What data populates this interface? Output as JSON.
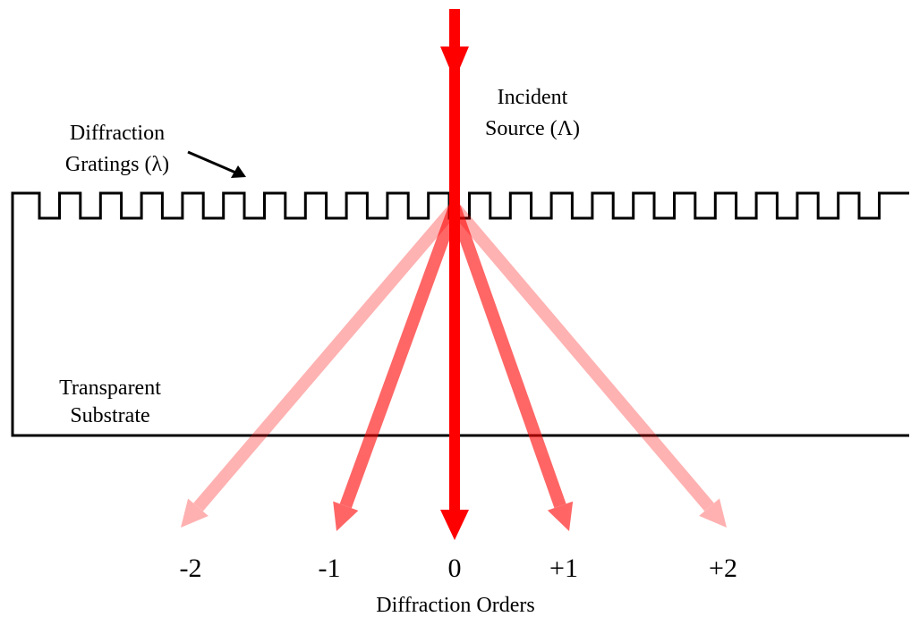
{
  "labels": {
    "incident_line1": "Incident",
    "incident_line2": "Source (Λ)",
    "grating_line1": "Diffraction",
    "grating_line2": "Gratings (λ)",
    "substrate_line1": "Transparent",
    "substrate_line2": "Substrate",
    "orders_caption": "Diffraction Orders"
  },
  "orders": [
    {
      "label": "-2",
      "opacity": 0.3
    },
    {
      "label": "-1",
      "opacity": 0.6
    },
    {
      "label": "0",
      "opacity": 1.0
    },
    {
      "label": "+1",
      "opacity": 0.6
    },
    {
      "label": "+2",
      "opacity": 0.3
    }
  ],
  "colors": {
    "beam": "#ff0000",
    "outline": "#000000",
    "background": "#ffffff"
  }
}
